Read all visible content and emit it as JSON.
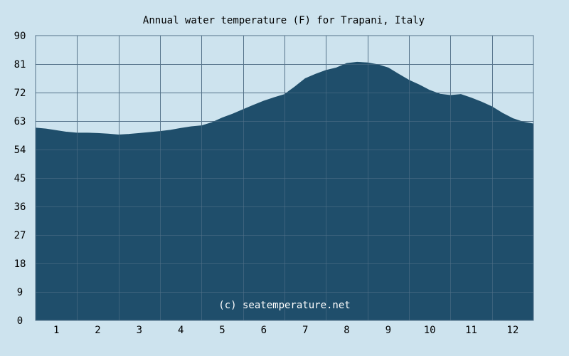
{
  "chart_data": {
    "type": "area",
    "title": "Annual water temperature (F) for Trapani, Italy",
    "xlabel": "",
    "ylabel": "",
    "x_ticks": [
      "1",
      "2",
      "3",
      "4",
      "5",
      "6",
      "7",
      "8",
      "9",
      "10",
      "11",
      "12"
    ],
    "y_ticks": [
      "0",
      "9",
      "18",
      "27",
      "36",
      "45",
      "54",
      "63",
      "72",
      "81",
      "90"
    ],
    "ylim": [
      0,
      90
    ],
    "xlim": [
      0.5,
      12.5
    ],
    "grid": true,
    "series": [
      {
        "x": [
          0.5,
          0.75,
          1.0,
          1.25,
          1.5,
          1.75,
          2.0,
          2.25,
          2.5,
          2.75,
          3.0,
          3.25,
          3.5,
          3.75,
          4.0,
          4.25,
          4.5,
          4.75,
          5.0,
          5.25,
          5.5,
          5.75,
          6.0,
          6.25,
          6.5,
          6.75,
          7.0,
          7.25,
          7.5,
          7.75,
          8.0,
          8.25,
          8.5,
          8.75,
          9.0,
          9.25,
          9.5,
          9.75,
          10.0,
          10.25,
          10.5,
          10.75,
          11.0,
          11.25,
          11.5,
          11.75,
          12.0,
          12.25,
          12.5
        ],
        "values": [
          60.8,
          60.5,
          60.0,
          59.5,
          59.2,
          59.2,
          59.1,
          58.9,
          58.6,
          58.8,
          59.1,
          59.4,
          59.7,
          60.1,
          60.7,
          61.2,
          61.5,
          62.5,
          64.0,
          65.2,
          66.6,
          68.0,
          69.3,
          70.4,
          71.4,
          73.8,
          76.4,
          77.8,
          79.0,
          79.8,
          81.2,
          81.6,
          81.4,
          80.8,
          79.8,
          77.8,
          75.9,
          74.4,
          72.7,
          71.5,
          71.1,
          71.4,
          70.3,
          69.0,
          67.5,
          65.5,
          63.8,
          62.7,
          62.1
        ]
      }
    ],
    "colors": {
      "fill": "#1f4e6b",
      "grid": "#55738a",
      "plot_background": "#cde3ee",
      "page_background": "#cde3ee"
    },
    "watermark": "(c) seatemperature.net"
  }
}
